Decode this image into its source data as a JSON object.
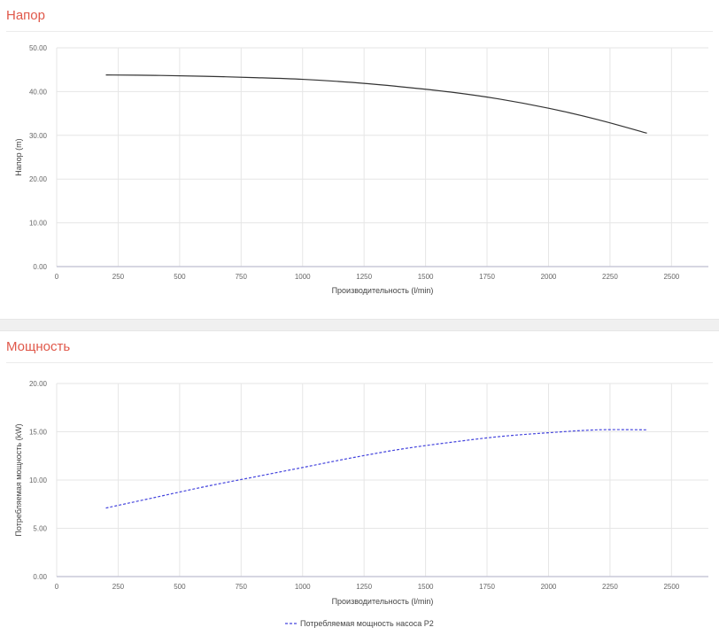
{
  "chart_data": [
    {
      "type": "line",
      "title": "Напор",
      "xlabel": "Производительность (l/min)",
      "ylabel": "Напор (m)",
      "xlim": [
        0,
        2650
      ],
      "ylim": [
        0,
        50
      ],
      "x_ticks": [
        0,
        250,
        500,
        750,
        1000,
        1250,
        1500,
        1750,
        2000,
        2250,
        2500
      ],
      "y_ticks": [
        "0.00",
        "10.00",
        "20.00",
        "30.00",
        "40.00",
        "50.00"
      ],
      "y_tick_values": [
        0,
        10,
        20,
        30,
        40,
        50
      ],
      "grid": true,
      "series": [
        {
          "style": "solid",
          "color": "#333333",
          "x": [
            200,
            400,
            600,
            800,
            1000,
            1200,
            1400,
            1600,
            1800,
            2000,
            2200,
            2400
          ],
          "y": [
            43.8,
            43.7,
            43.5,
            43.2,
            42.8,
            42.1,
            41.1,
            39.9,
            38.3,
            36.2,
            33.6,
            30.5
          ]
        }
      ]
    },
    {
      "type": "line",
      "title": "Мощность",
      "xlabel": "Производительность (l/min)",
      "ylabel": "Потребляемая мощность (kW)",
      "xlim": [
        0,
        2650
      ],
      "ylim": [
        0,
        20
      ],
      "x_ticks": [
        0,
        250,
        500,
        750,
        1000,
        1250,
        1500,
        1750,
        2000,
        2250,
        2500
      ],
      "y_ticks": [
        "0.00",
        "5.00",
        "10.00",
        "15.00",
        "20.00"
      ],
      "y_tick_values": [
        0,
        5,
        10,
        15,
        20
      ],
      "grid": true,
      "legend_position": "bottom",
      "series": [
        {
          "name": "Потребляемая мощность насоса P2",
          "style": "dashed",
          "color": "#4444dd",
          "x": [
            200,
            400,
            600,
            800,
            1000,
            1200,
            1400,
            1600,
            1800,
            2000,
            2200,
            2400
          ],
          "y": [
            7.1,
            8.2,
            9.3,
            10.3,
            11.3,
            12.3,
            13.2,
            13.9,
            14.5,
            14.9,
            15.2,
            15.2
          ]
        }
      ]
    }
  ]
}
